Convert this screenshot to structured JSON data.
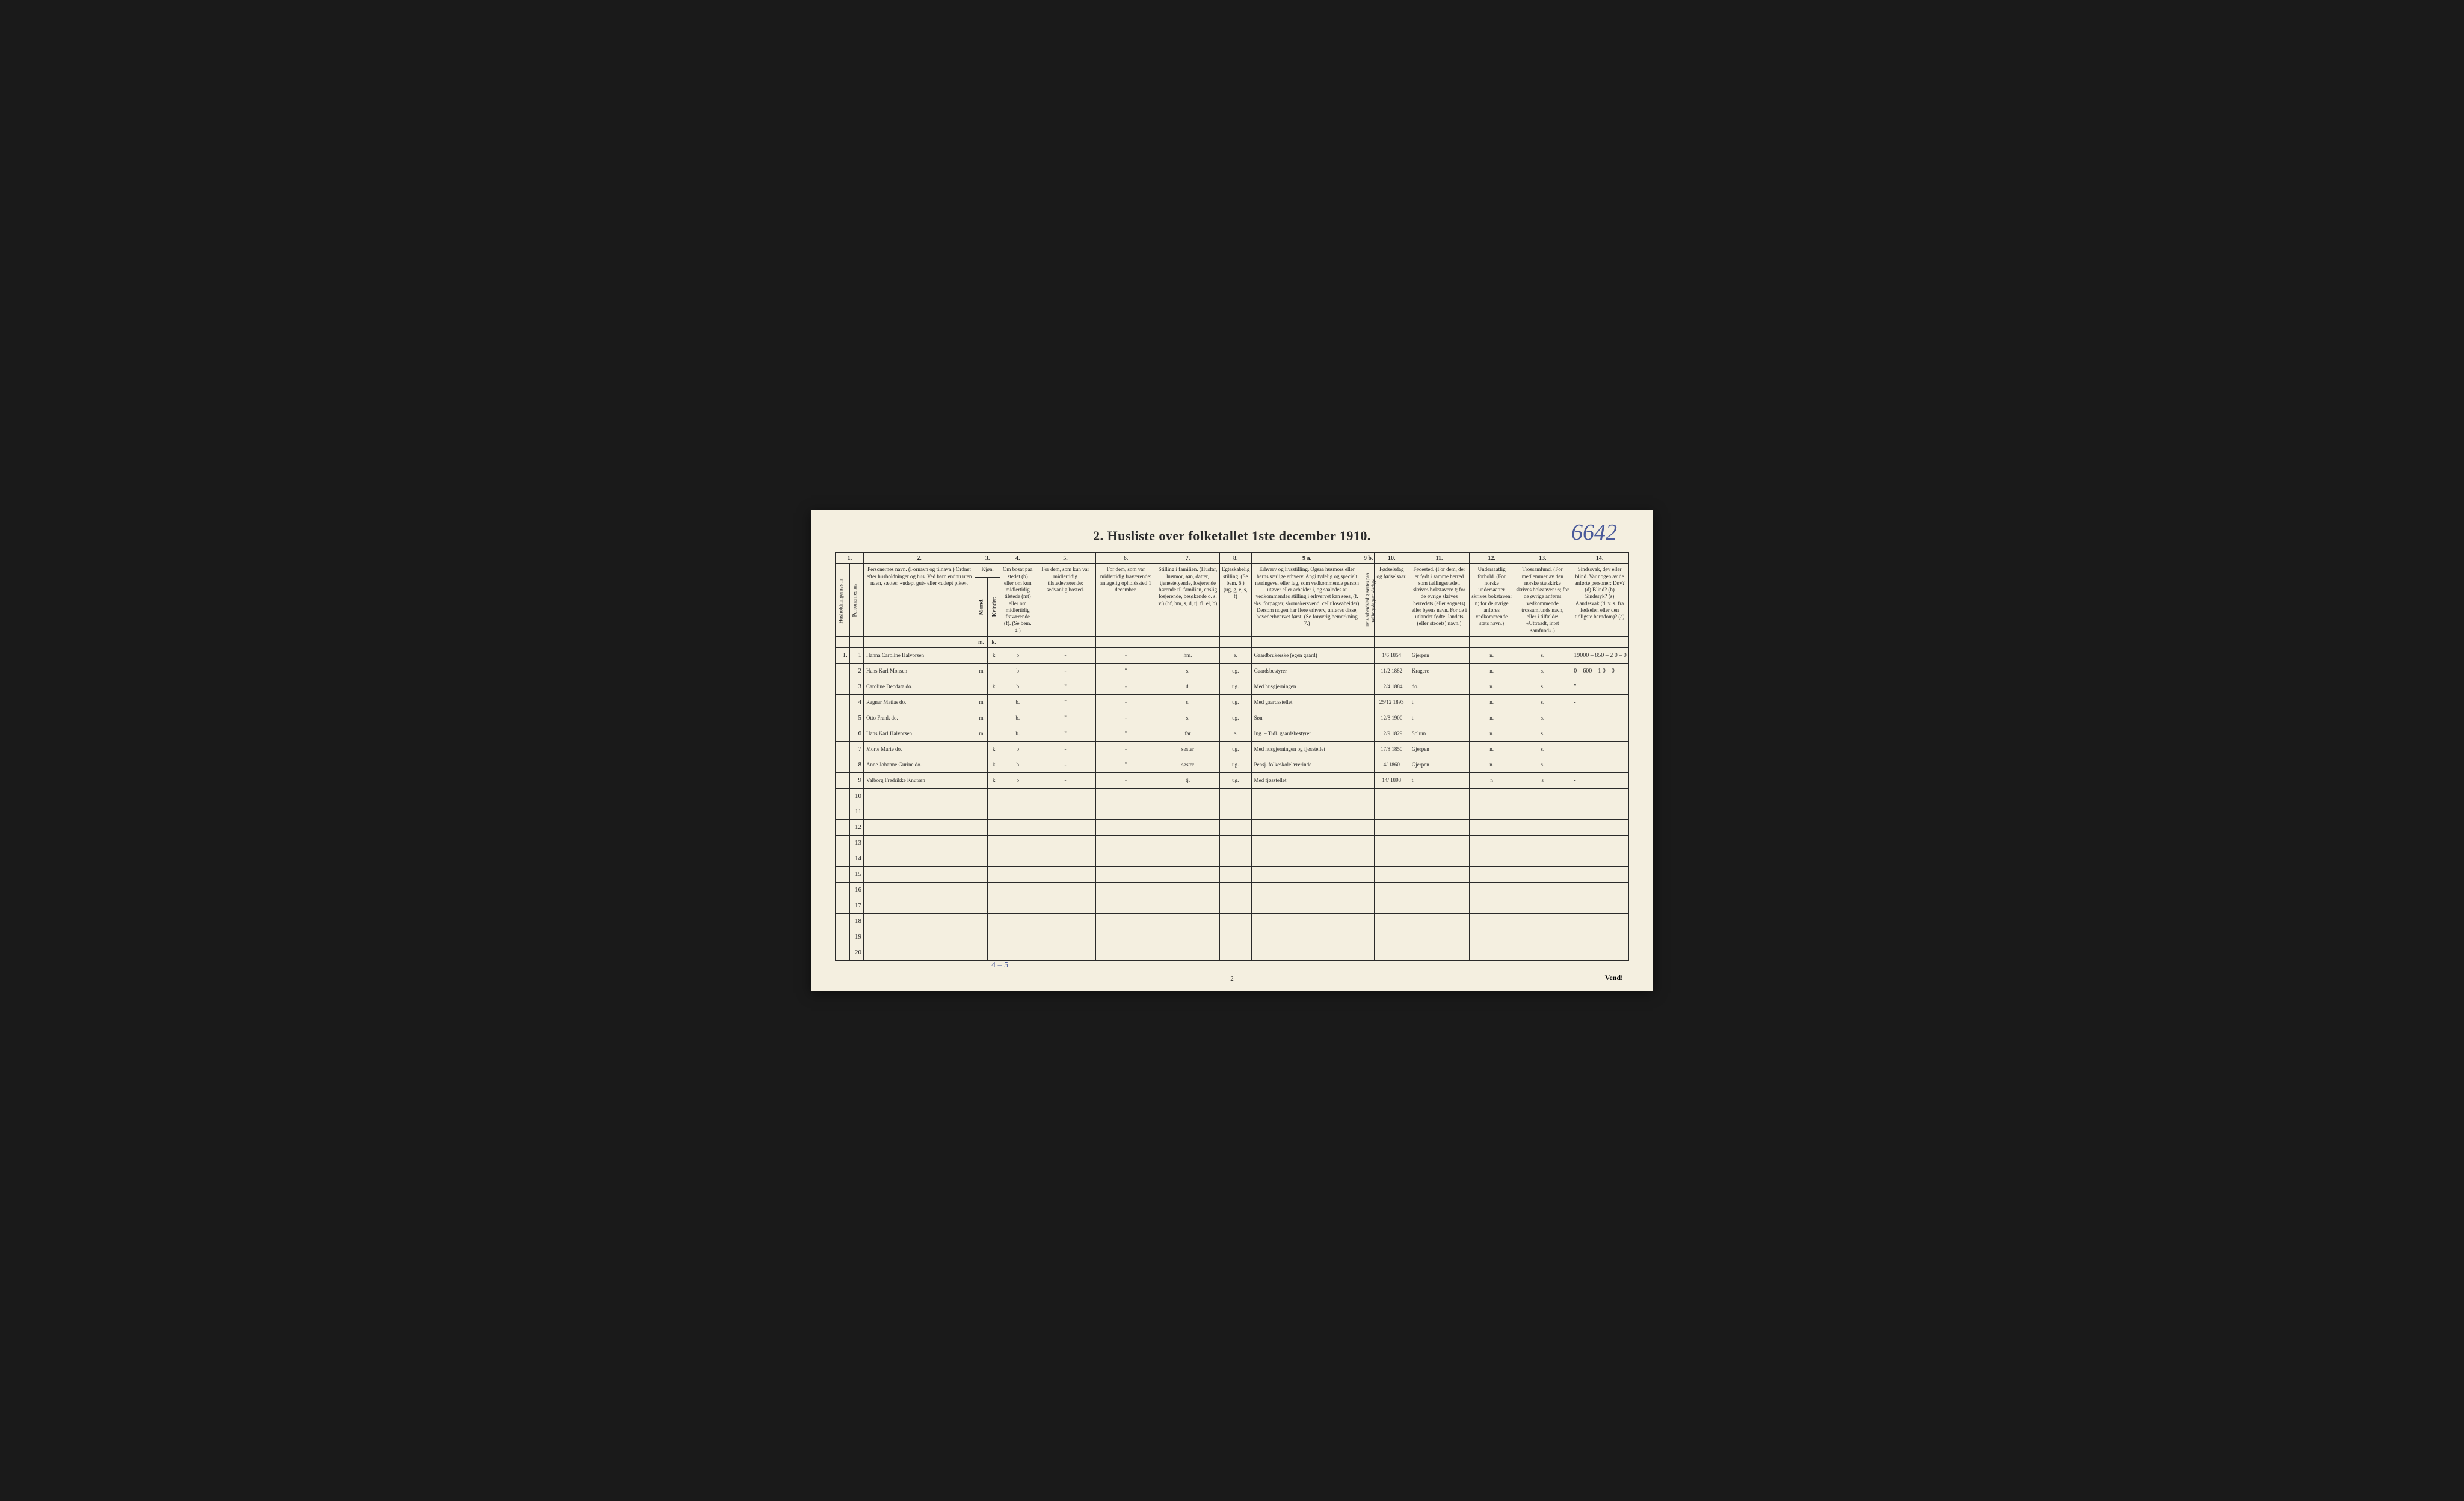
{
  "page": {
    "title": "2.  Husliste over folketallet 1ste december 1910.",
    "handwritten_ref": "6642",
    "sex_tally": "4 – 5",
    "page_number_bottom": "2",
    "vend": "Vend!",
    "background_color": "#f4efe0",
    "ink_color": "#2a2a2a",
    "handwriting_color": "#3a3a4a",
    "ref_color": "#4a5a9a"
  },
  "colnums": [
    "1.",
    "2.",
    "3.",
    "4.",
    "5.",
    "6.",
    "7.",
    "8.",
    "9 a.",
    "9 b.",
    "10.",
    "11.",
    "12.",
    "13.",
    "14."
  ],
  "headers": {
    "c1": "Husholdningernes nr.",
    "c2": "Personernes nr.",
    "c3": "Personernes navn.\n(Fornavn og tilnavn.)\nOrdnet efter husholdninger og hus.\nVed barn endnu uten navn, sættes: «udøpt gut» eller «udøpt pike».",
    "c34": "Kjøn.",
    "c4m": "Mænd.",
    "c4k": "Kvinder.",
    "c5": "Om bosat paa stedet (b) eller om kun midlertidig tilstede (mt) eller om midlertidig fraværende (f).\n(Se bem. 4.)",
    "c6": "For dem, som kun var midlertidig tilstedeværende:\nsedvanlig bosted.",
    "c7": "For dem, som var midlertidig fraværende:\nantagelig opholdssted 1 december.",
    "c8": "Stilling i familien.\n(Husfar, husmor, søn, datter, tjenestetyende, losjerende hørende til familien, enslig losjerende, besøkende o. s. v.)\n(hf, hm, s, d, tj, fl, el, b)",
    "c9": "Egteskabelig stilling.\n(Se bem. 6.)\n(ug, g, e, s, f)",
    "c10": "Erhverv og livsstilling.\nOgsaa husmors eller barns særlige erhverv.\nAngi tydelig og specielt næringsvei eller fag, som vedkommende person utøver eller arbeider i, og saaledes at vedkommendes stilling i erhvervet kan sees, (f. eks. forpagter, skomakersvend, celluloseabeider). Dersom nogen har flere erhverv, anføres disse, hovederhvervet først.\n(Se forøvrig bemerkning 7.)",
    "c11": "Hvis arbeidsledig sættes paa tællingsdagen: «ledig»",
    "c12": "Fødselsdag og fødselsaar.",
    "c13": "Fødested.\n(For dem, der er født i samme herred som tællingsstedet, skrives bokstaven: t; for de øvrige skrives herredets (eller sognets) eller byens navn. For de i utlandet fødte: landets (eller stedets) navn.)",
    "c14": "Undersaatlig forhold.\n(For norske undersaatter skrives bokstaven: n; for de øvrige anføres vedkommende stats navn.)",
    "c15": "Trossamfund.\n(For medlemmer av den norske statskirke skrives bokstaven: s; for de øvrige anføres vedkommende trossamfunds navn, eller i tilfælde: «Uttraadt, intet samfund».)",
    "c16": "Sindssvak, døv eller blind.\nVar nogen av de anførte personer:\nDøv? (d)\nBlind? (b)\nSindssyk? (s)\nAandssvak (d. v. s. fra fødselen eller den tidligste barndom)? (a)"
  },
  "rows": [
    {
      "hh": "1.",
      "pn": "1",
      "name": "Hanna Caroline Halvorsen",
      "m": "",
      "k": "k",
      "res": "b",
      "away": "-",
      "temp": "-",
      "fam": "hm.",
      "mar": "e.",
      "occ": "Gaardbrukerske (egen gaard)",
      "led": "",
      "dob": "1/6 1854",
      "birthplace": "Gjerpen",
      "nat": "n.",
      "rel": "s.",
      "dis": "19000 – 850 – 2   0 – 0"
    },
    {
      "hh": "",
      "pn": "2",
      "name": "Hans Karl Monsen",
      "m": "m",
      "k": "",
      "res": "b",
      "away": "-",
      "temp": "\"",
      "fam": "s.",
      "mar": "ug.",
      "occ": "Gaardsbestyrer",
      "led": "",
      "dob": "11/2 1882",
      "birthplace": "Kragerø",
      "nat": "n.",
      "rel": "s.",
      "dis": "0 – 600 – 1   0 – 0"
    },
    {
      "hh": "",
      "pn": "3",
      "name": "Caroline Deodata   do.",
      "m": "",
      "k": "k",
      "res": "b",
      "away": "\"",
      "temp": "-",
      "fam": "d.",
      "mar": "ug.",
      "occ": "Med husgjerningen",
      "led": "",
      "dob": "12/4 1884",
      "birthplace": "do.",
      "nat": "n.",
      "rel": "s.",
      "dis": "\""
    },
    {
      "hh": "",
      "pn": "4",
      "name": "Ragnar Matias   do.",
      "m": "m",
      "k": "",
      "res": "b.",
      "away": "\"",
      "temp": "-",
      "fam": "s.",
      "mar": "ug.",
      "occ": "Med gaardsstellet",
      "led": "",
      "dob": "25/12 1893",
      "birthplace": "t.",
      "nat": "n.",
      "rel": "s.",
      "dis": "-"
    },
    {
      "hh": "",
      "pn": "5",
      "name": "Otto Frank   do.",
      "m": "m",
      "k": "",
      "res": "b.",
      "away": "\"",
      "temp": "-",
      "fam": "s.",
      "mar": "ug.",
      "occ": "Søn",
      "led": "",
      "dob": "12/8 1900",
      "birthplace": "t.",
      "nat": "n.",
      "rel": "s.",
      "dis": "-"
    },
    {
      "hh": "",
      "pn": "6",
      "name": "Hans Karl Halvorsen",
      "m": "m",
      "k": "",
      "res": "b.",
      "away": "\"",
      "temp": "\"",
      "fam": "far",
      "mar": "e.",
      "occ": "Ing. – Tidl. gaardsbestyrer",
      "led": "",
      "dob": "12/9 1829",
      "birthplace": "Solum",
      "nat": "n.",
      "rel": "s.",
      "dis": ""
    },
    {
      "hh": "",
      "pn": "7",
      "name": "Morte Marie   do.",
      "m": "",
      "k": "k",
      "res": "b",
      "away": "-",
      "temp": "-",
      "fam": "søster",
      "mar": "ug.",
      "occ": "Med husgjerningen og fjøsstellet",
      "led": "",
      "dob": "17/8 1850",
      "birthplace": "Gjerpen",
      "nat": "n.",
      "rel": "s.",
      "dis": ""
    },
    {
      "hh": "",
      "pn": "8",
      "name": "Anne Johanne Gurine  do.",
      "m": "",
      "k": "k",
      "res": "b",
      "away": "-",
      "temp": "\"",
      "fam": "søster",
      "mar": "ug.",
      "occ": "Pensj. folkeskolelærerinde",
      "led": "",
      "dob": "4/ 1860",
      "birthplace": "Gjerpen",
      "nat": "n.",
      "rel": "s.",
      "dis": ""
    },
    {
      "hh": "",
      "pn": "9",
      "name": "Valborg Fredrikke Knutsen",
      "m": "",
      "k": "k",
      "res": "b",
      "away": "-",
      "temp": "-",
      "fam": "tj.",
      "mar": "ug.",
      "occ": "Med fjøsstellet",
      "led": "",
      "dob": "14/ 1893",
      "birthplace": "t.",
      "nat": "n",
      "rel": "s",
      "dis": "-"
    }
  ],
  "empty_row_nums": [
    "10",
    "11",
    "12",
    "13",
    "14",
    "15",
    "16",
    "17",
    "18",
    "19",
    "20"
  ]
}
